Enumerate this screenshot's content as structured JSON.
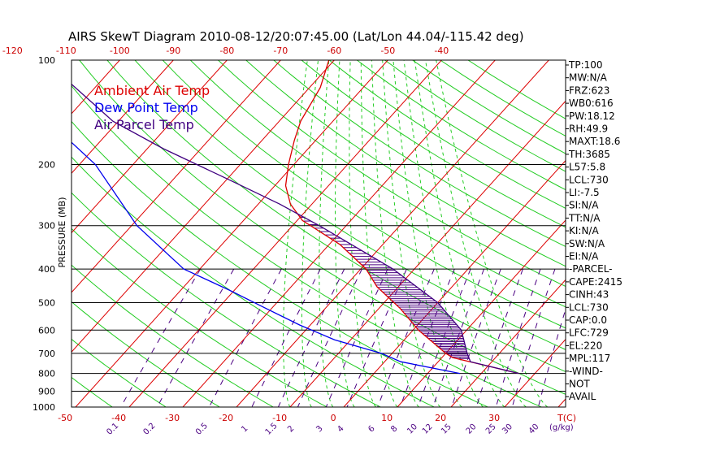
{
  "title": "AIRS SkewT Diagram 2010-08-12/20:07:45.00 (Lat/Lon 44.04/-115.42 deg)",
  "colors": {
    "ambient": "#dd0000",
    "dewpoint": "#0000ee",
    "parcel": "#400080",
    "isotherm": "#dd0000",
    "dry_adiabat": "#22cc22",
    "moist_adiabat": "#22cc22",
    "mixing_ratio": "#4b0082",
    "isobar": "#000000",
    "hatch": "#4b0082"
  },
  "legend": [
    "Ambient Air Temp",
    "Dew Point Temp",
    "Air Parcel Temp"
  ],
  "indices": [
    "TP:100",
    "MW:N/A",
    "FRZ:623",
    "WB0:616",
    "PW:18.12",
    "RH:49.9",
    "MAXT:18.6",
    "TH:3685",
    "L57:5.8",
    "LCL:730",
    "LI:-7.5",
    "SI:N/A",
    "TT:N/A",
    "KI:N/A",
    "SW:N/A",
    "EI:N/A",
    "-PARCEL-",
    "CAPE:2415",
    "CINH:43",
    "LCL:730",
    "CAP:0.0",
    "LFC:729",
    "EL:220",
    "MPL:117",
    "-WIND-",
    "NOT",
    "AVAIL"
  ],
  "chart_data": {
    "type": "line",
    "title": "AIRS SkewT Diagram 2010-08-12/20:07:45.00 (Lat/Lon 44.04/-115.42 deg)",
    "ylabel": "PRESSURE (MB)",
    "xlabel": "T(C)",
    "pressure_ticks": [
      100,
      200,
      300,
      400,
      500,
      600,
      700,
      800,
      900,
      1000
    ],
    "top_temp_ticks": [
      "-120",
      "-110",
      "-100",
      "-90",
      "-80",
      "-70",
      "-60",
      "-50",
      "-40"
    ],
    "bottom_temp_ticks": [
      "-50",
      "-40",
      "-30",
      "-20",
      "-10",
      "0",
      "10",
      "20",
      "30"
    ],
    "bottom_temp_unit": "T(C)",
    "mixing_ratio_ticks": [
      "0.1",
      "0.2",
      "0.5",
      "1",
      "1.5",
      "2",
      "3",
      "4",
      "6",
      "8",
      "10",
      "12",
      "15",
      "20",
      "25",
      "30",
      "40"
    ],
    "mixing_ratio_unit": "(g/kg)",
    "series": [
      {
        "name": "Ambient Air Temp",
        "pressure": [
          800,
          720,
          700,
          600,
          520,
          450,
          400,
          340,
          290,
          260,
          230,
          200,
          170,
          150,
          120,
          100
        ],
        "temp": [
          27,
          12,
          10,
          1,
          -6,
          -14,
          -19,
          -28,
          -39,
          -44,
          -48,
          -51,
          -54,
          -56,
          -58,
          -61
        ]
      },
      {
        "name": "Dew Point Temp",
        "pressure": [
          800,
          740,
          700,
          640,
          580,
          520,
          460,
          400,
          300,
          200,
          150,
          120,
          100
        ],
        "temp": [
          16,
          3,
          -2,
          -13,
          -22,
          -31,
          -41,
          -53,
          -69,
          -87,
          -103,
          -106,
          -110
        ]
      },
      {
        "name": "Air Parcel Temp",
        "pressure": [
          800,
          740,
          700,
          600,
          500,
          400,
          300,
          260,
          220,
          180,
          150,
          100
        ],
        "temp": [
          27,
          16,
          14,
          9,
          0,
          -14,
          -35,
          -46,
          -60,
          -77,
          -91,
          -114
        ]
      }
    ]
  }
}
